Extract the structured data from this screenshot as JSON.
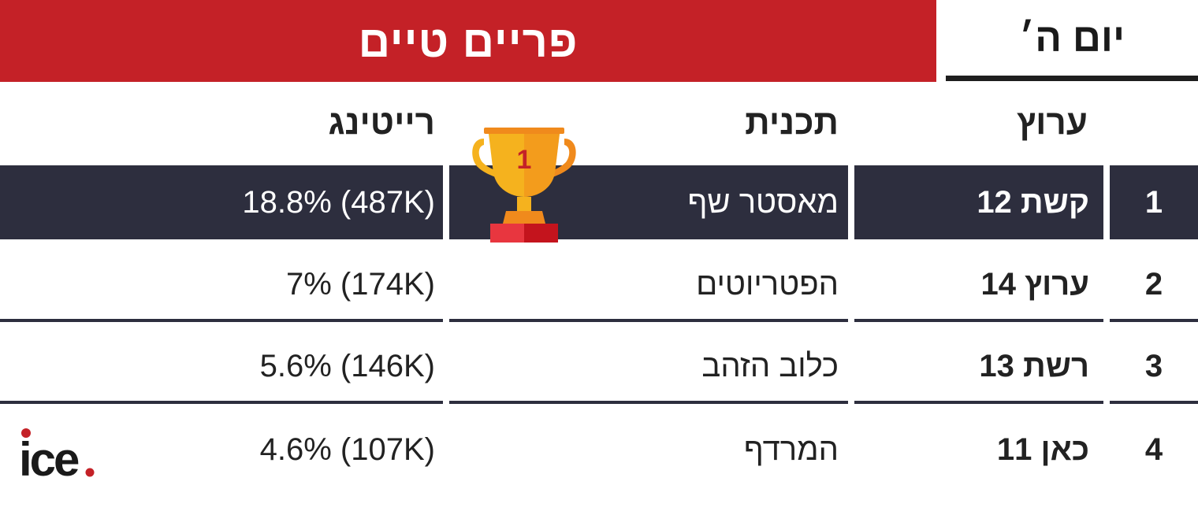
{
  "header": {
    "title": "פריים טיים",
    "day": "יום ה׳"
  },
  "columns": {
    "channel": "ערוץ",
    "show": "תכנית",
    "rating": "רייטינג"
  },
  "rows": [
    {
      "rank": "1",
      "channel": "קשת 12",
      "show": "מאסטר שף",
      "rating": "(487K) 18.8%"
    },
    {
      "rank": "2",
      "channel": "ערוץ 14",
      "show": "הפטריוטים",
      "rating": "(174K) 7%"
    },
    {
      "rank": "3",
      "channel": "רשת 13",
      "show": "כלוב הזהב",
      "rating": "(146K) 5.6%"
    },
    {
      "rank": "4",
      "channel": "כאן 11",
      "show": "המרדף",
      "rating": "(107K) 4.6%"
    }
  ],
  "trophy": {
    "icon": "trophy-icon",
    "number": "1"
  },
  "logo": {
    "text": "ice",
    "dot_color": "#c42127"
  },
  "colors": {
    "brand_red": "#c42127",
    "highlight_bg": "#2d2e3e",
    "trophy_gold": "#f5b21e",
    "trophy_base": "#e8363f"
  }
}
